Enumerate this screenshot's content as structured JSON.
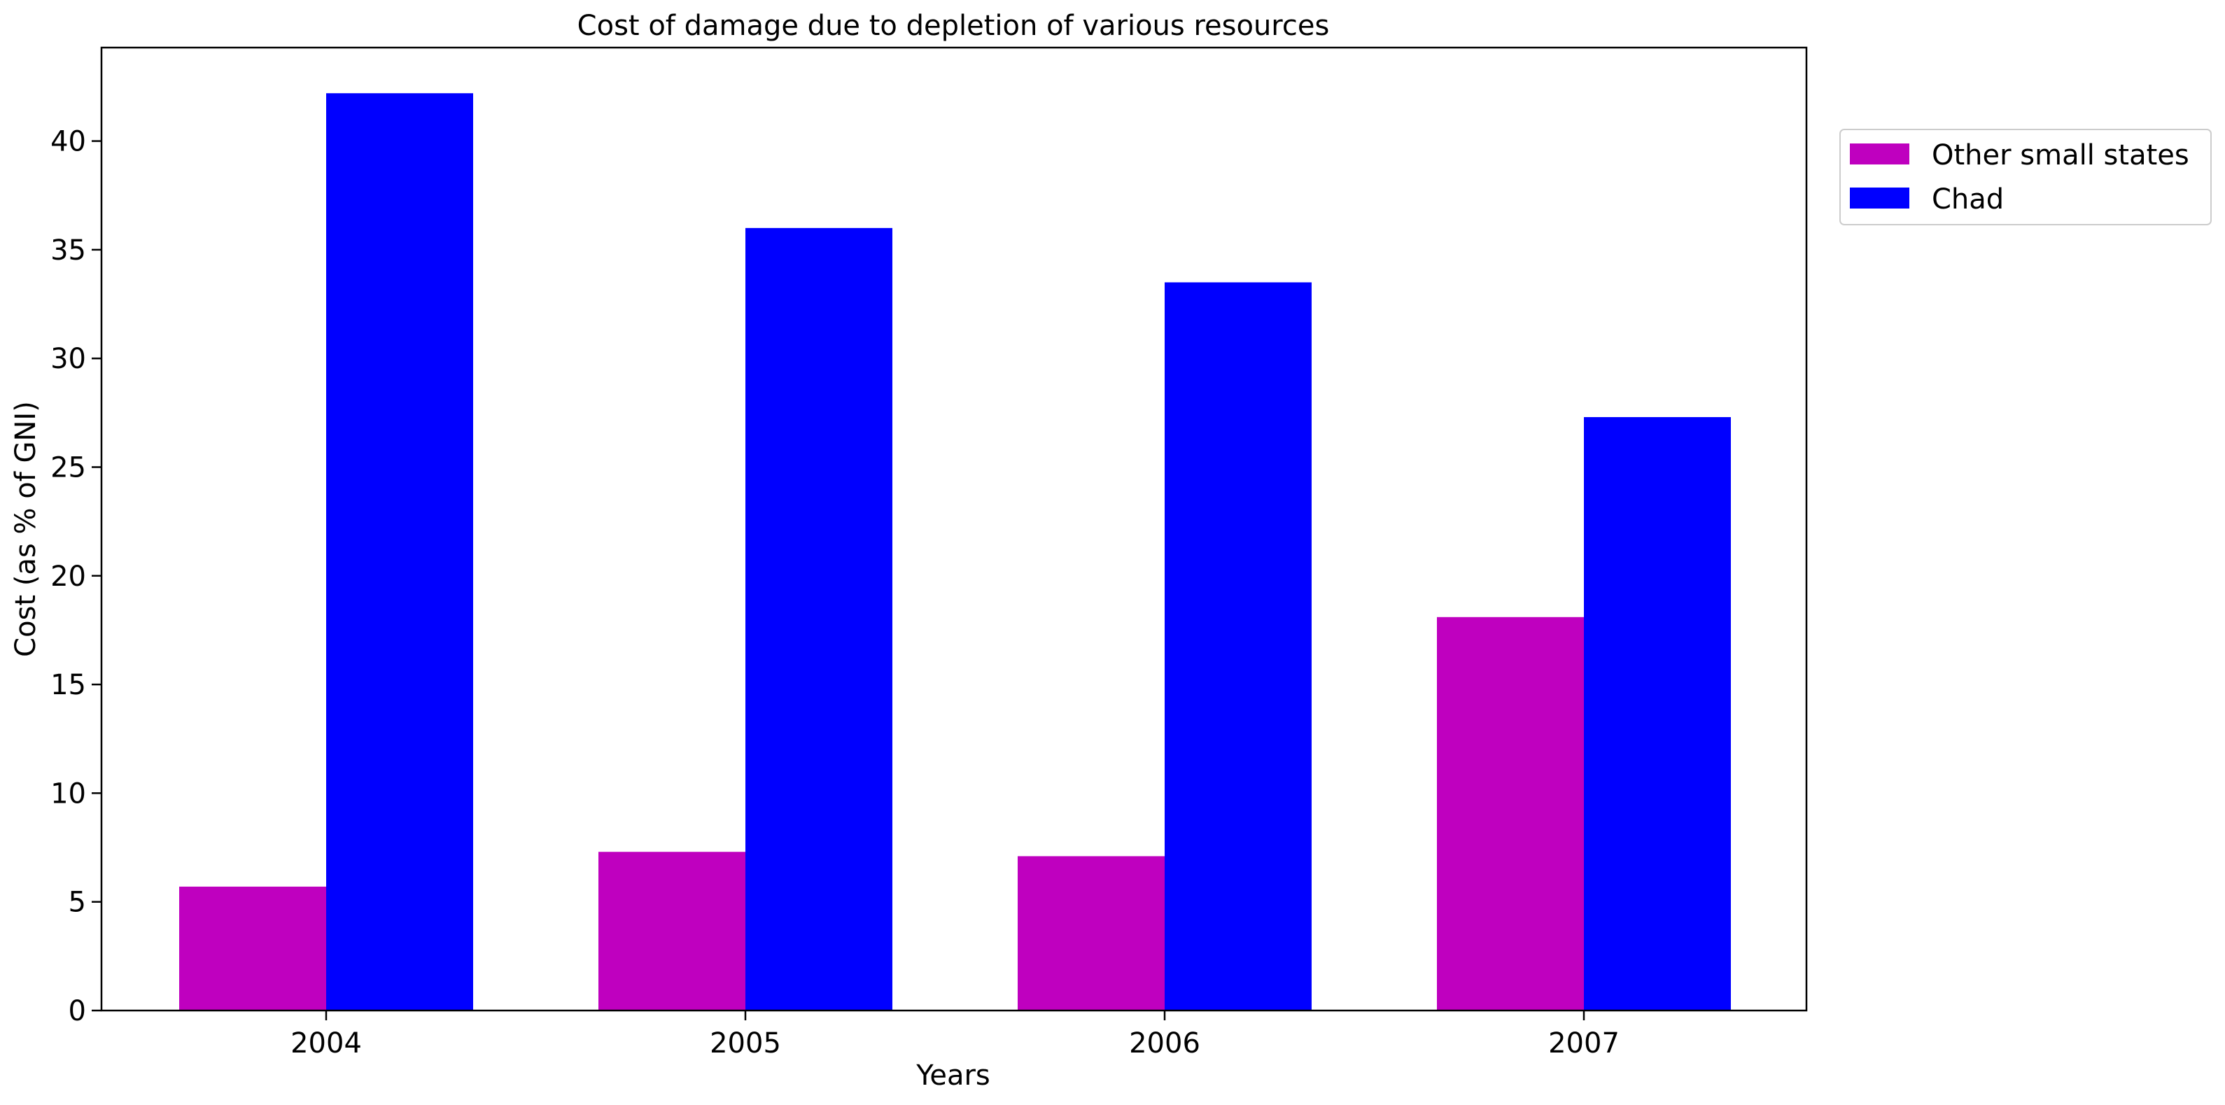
{
  "chart_data": {
    "type": "bar",
    "title": "Cost of damage due to depletion of various resources",
    "xlabel": "Years",
    "ylabel": "Cost (as % of GNI)",
    "categories": [
      "2004",
      "2005",
      "2006",
      "2007"
    ],
    "series": [
      {
        "name": "Other small states",
        "color": "#bf00bf",
        "values": [
          5.7,
          7.3,
          7.1,
          18.1
        ]
      },
      {
        "name": "Chad",
        "color": "#0000ff",
        "values": [
          42.2,
          36.0,
          33.5,
          27.3
        ]
      }
    ],
    "ylim": [
      0,
      44.3
    ],
    "yticks": [
      "0",
      "5",
      "10",
      "15",
      "20",
      "25",
      "30",
      "35",
      "40"
    ],
    "grid": false,
    "legend_position": "upper right, outside plot"
  }
}
